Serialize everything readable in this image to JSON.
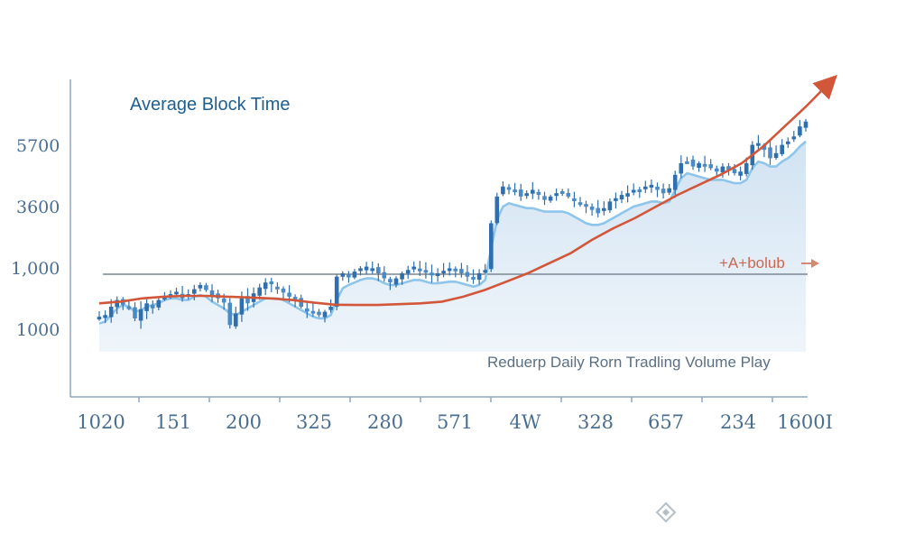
{
  "chart_data": {
    "type": "line",
    "title": "Average Block Time",
    "x_tick_labels": [
      "1020",
      "151",
      "200",
      "325",
      "280",
      "571",
      "4W",
      "328",
      "657",
      "234",
      "1600I"
    ],
    "y_tick_labels": [
      "5700",
      "3600",
      "1,000",
      "1000"
    ],
    "reference_line": {
      "label": "+A+bolub",
      "value_label": "1,000"
    },
    "annotation": "Reduerp Daily Rorn Tradling Volume Play",
    "series": [
      {
        "kind": "candlestick",
        "color": "#2f6fae",
        "close": [
          1040,
          1050,
          1100,
          1140,
          1110,
          1095,
          1030,
          1085,
          1120,
          1090,
          1140,
          1160,
          1175,
          1190,
          1150,
          1175,
          1205,
          1230,
          1200,
          1165,
          1150,
          1125,
          990,
          1060,
          1150,
          1120,
          1180,
          1215,
          1245,
          1235,
          1210,
          1185,
          1160,
          1140,
          1100,
          1070,
          1060,
          1050,
          1070,
          1100,
          1280,
          1300,
          1285,
          1310,
          1330,
          1340,
          1330,
          1300,
          1270,
          1245,
          1270,
          1300,
          1320,
          1340,
          1320,
          1305,
          1290,
          1300,
          1315,
          1330,
          1325,
          1300,
          1280,
          1275,
          1300,
          1320,
          1600,
          1760,
          1820,
          1810,
          1790,
          1760,
          1780,
          1800,
          1770,
          1740,
          1760,
          1780,
          1790,
          1760,
          1740,
          1720,
          1700,
          1680,
          1660,
          1690,
          1730,
          1750,
          1770,
          1780,
          1800,
          1790,
          1820,
          1830,
          1800,
          1780,
          1810,
          1890,
          1960,
          1970,
          1940,
          1960,
          1950,
          1930,
          1910,
          1940,
          1920,
          1900,
          1910,
          1960,
          2070,
          2080,
          2040,
          1990,
          2020,
          2070,
          2090,
          2120,
          2180,
          2210
        ]
      },
      {
        "kind": "smoothed line",
        "color": "#8ec5ea",
        "values": [
          1000,
          1010,
          1050,
          1090,
          1110,
          1100,
          1070,
          1080,
          1100,
          1110,
          1120,
          1140,
          1150,
          1150,
          1140,
          1140,
          1160,
          1170,
          1160,
          1130,
          1110,
          1090,
          1060,
          1050,
          1070,
          1090,
          1110,
          1130,
          1150,
          1150,
          1150,
          1140,
          1120,
          1100,
          1080,
          1060,
          1040,
          1030,
          1030,
          1050,
          1140,
          1210,
          1230,
          1245,
          1260,
          1270,
          1270,
          1260,
          1240,
          1230,
          1230,
          1240,
          1250,
          1260,
          1260,
          1250,
          1240,
          1240,
          1245,
          1250,
          1250,
          1240,
          1230,
          1220,
          1230,
          1260,
          1450,
          1620,
          1700,
          1720,
          1710,
          1700,
          1690,
          1690,
          1680,
          1670,
          1670,
          1670,
          1670,
          1660,
          1640,
          1620,
          1600,
          1590,
          1590,
          1600,
          1620,
          1640,
          1660,
          1680,
          1700,
          1710,
          1720,
          1730,
          1730,
          1720,
          1730,
          1800,
          1870,
          1900,
          1890,
          1880,
          1870,
          1860,
          1860,
          1860,
          1850,
          1840,
          1840,
          1860,
          1930,
          1970,
          1960,
          1940,
          1940,
          1970,
          1990,
          2020,
          2060,
          2090
        ]
      },
      {
        "kind": "trend line",
        "color": "#d2573a",
        "values": [
          1120,
          1130,
          1150,
          1160,
          1165,
          1165,
          1160,
          1155,
          1150,
          1140,
          1125,
          1112,
          1110,
          1110,
          1115,
          1120,
          1130,
          1160,
          1200,
          1250,
          1300,
          1360,
          1420,
          1500,
          1570,
          1630,
          1700,
          1770,
          1830,
          1890,
          1960,
          2060,
          2180,
          2300,
          2430
        ]
      }
    ]
  }
}
